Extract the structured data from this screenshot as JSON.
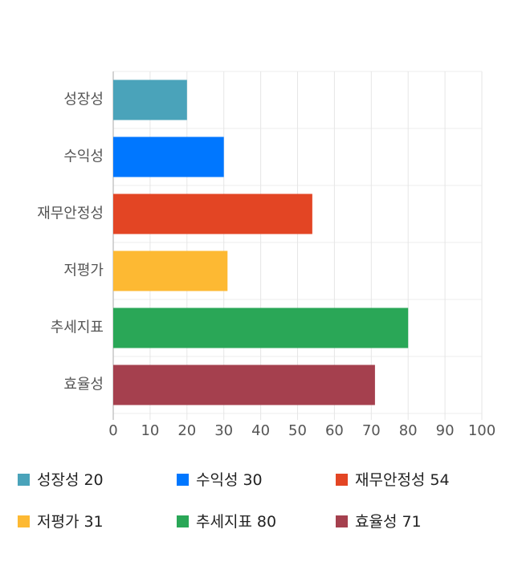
{
  "chart_data": {
    "type": "barh",
    "categories": [
      "성장성",
      "수익성",
      "재무안정성",
      "저평가",
      "추세지표",
      "효율성"
    ],
    "values": [
      20,
      30,
      54,
      31,
      80,
      71
    ],
    "colors": [
      "#4aa3ba",
      "#0077ff",
      "#e34524",
      "#fdb933",
      "#2aa757",
      "#a5404e"
    ],
    "xlim": [
      0,
      100
    ],
    "xticks": [
      0,
      10,
      20,
      30,
      40,
      50,
      60,
      70,
      80,
      90,
      100
    ],
    "grid": true
  }
}
